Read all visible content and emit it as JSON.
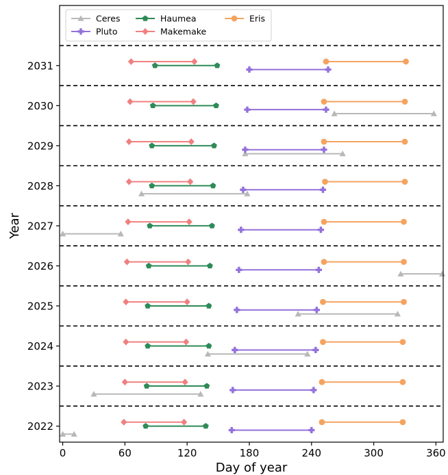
{
  "chart_data": {
    "type": "line",
    "title": "",
    "xlabel": "Day of year",
    "ylabel": "Year",
    "xlim": [
      -3,
      367
    ],
    "ylim": [
      2021.6,
      2032.5
    ],
    "xticks": [
      0,
      60,
      120,
      180,
      240,
      300,
      360
    ],
    "yticks": [
      2022,
      2023,
      2024,
      2025,
      2026,
      2027,
      2028,
      2029,
      2030,
      2031
    ],
    "grid": false,
    "year_separators": [
      2022.5,
      2023.5,
      2024.5,
      2025.5,
      2026.5,
      2027.5,
      2028.5,
      2029.5,
      2030.5,
      2031.5
    ],
    "legend_position": "top-left",
    "series": [
      {
        "name": "Ceres",
        "color": "#b8b8b8",
        "marker": "triangle",
        "offset": -0.2,
        "segments": [
          {
            "year": 2022,
            "x": [
              0,
              11
            ]
          },
          {
            "year": 2023,
            "x": [
              30,
              133
            ]
          },
          {
            "year": 2024,
            "x": [
              140,
              236
            ]
          },
          {
            "year": 2025,
            "x": [
              227,
              323
            ]
          },
          {
            "year": 2026,
            "x": [
              326,
              366
            ]
          },
          {
            "year": 2027,
            "x": [
              0,
              56
            ]
          },
          {
            "year": 2028,
            "x": [
              76,
              178
            ]
          },
          {
            "year": 2029,
            "x": [
              176,
              270
            ]
          },
          {
            "year": 2030,
            "x": [
              262,
              358
            ]
          }
        ]
      },
      {
        "name": "Pluto",
        "color": "#9370db",
        "marker": "plus",
        "offset": -0.1,
        "segments": [
          {
            "year": 2022,
            "x": [
              163,
              240
            ]
          },
          {
            "year": 2023,
            "x": [
              164,
              242
            ]
          },
          {
            "year": 2024,
            "x": [
              166,
              244
            ]
          },
          {
            "year": 2025,
            "x": [
              168,
              245
            ]
          },
          {
            "year": 2026,
            "x": [
              170,
              247
            ]
          },
          {
            "year": 2027,
            "x": [
              172,
              249
            ]
          },
          {
            "year": 2028,
            "x": [
              174,
              251
            ]
          },
          {
            "year": 2029,
            "x": [
              176,
              252
            ]
          },
          {
            "year": 2030,
            "x": [
              178,
              254
            ]
          },
          {
            "year": 2031,
            "x": [
              180,
              256
            ]
          }
        ]
      },
      {
        "name": "Haumea",
        "color": "#2e8b57",
        "marker": "pentagon",
        "offset": 0.0,
        "segments": [
          {
            "year": 2022,
            "x": [
              80,
              138
            ]
          },
          {
            "year": 2023,
            "x": [
              81,
              139
            ]
          },
          {
            "year": 2024,
            "x": [
              82,
              141
            ]
          },
          {
            "year": 2025,
            "x": [
              82,
              141
            ]
          },
          {
            "year": 2026,
            "x": [
              83,
              142
            ]
          },
          {
            "year": 2027,
            "x": [
              84,
              144
            ]
          },
          {
            "year": 2028,
            "x": [
              86,
              145
            ]
          },
          {
            "year": 2029,
            "x": [
              86,
              146
            ]
          },
          {
            "year": 2030,
            "x": [
              87,
              148
            ]
          },
          {
            "year": 2031,
            "x": [
              89,
              149
            ]
          }
        ]
      },
      {
        "name": "Makemake",
        "color": "#f08080",
        "marker": "diamond",
        "offset": 0.1,
        "segments": [
          {
            "year": 2022,
            "x": [
              59,
              117
            ]
          },
          {
            "year": 2023,
            "x": [
              60,
              118
            ]
          },
          {
            "year": 2024,
            "x": [
              61,
              119
            ]
          },
          {
            "year": 2025,
            "x": [
              61,
              120
            ]
          },
          {
            "year": 2026,
            "x": [
              62,
              121
            ]
          },
          {
            "year": 2027,
            "x": [
              63,
              122
            ]
          },
          {
            "year": 2028,
            "x": [
              64,
              123
            ]
          },
          {
            "year": 2029,
            "x": [
              64,
              124
            ]
          },
          {
            "year": 2030,
            "x": [
              65,
              126
            ]
          },
          {
            "year": 2031,
            "x": [
              66,
              127
            ]
          }
        ]
      },
      {
        "name": "Eris",
        "color": "#f4a460",
        "marker": "circle",
        "offset": 0.1,
        "segments": [
          {
            "year": 2022,
            "x": [
              250,
              328
            ]
          },
          {
            "year": 2023,
            "x": [
              250,
              328
            ]
          },
          {
            "year": 2024,
            "x": [
              251,
              328
            ]
          },
          {
            "year": 2025,
            "x": [
              251,
              329
            ]
          },
          {
            "year": 2026,
            "x": [
              252,
              329
            ]
          },
          {
            "year": 2027,
            "x": [
              252,
              329
            ]
          },
          {
            "year": 2028,
            "x": [
              253,
              330
            ]
          },
          {
            "year": 2029,
            "x": [
              252,
              330
            ]
          },
          {
            "year": 2030,
            "x": [
              252,
              330
            ]
          },
          {
            "year": 2031,
            "x": [
              254,
              331
            ]
          }
        ]
      }
    ]
  }
}
